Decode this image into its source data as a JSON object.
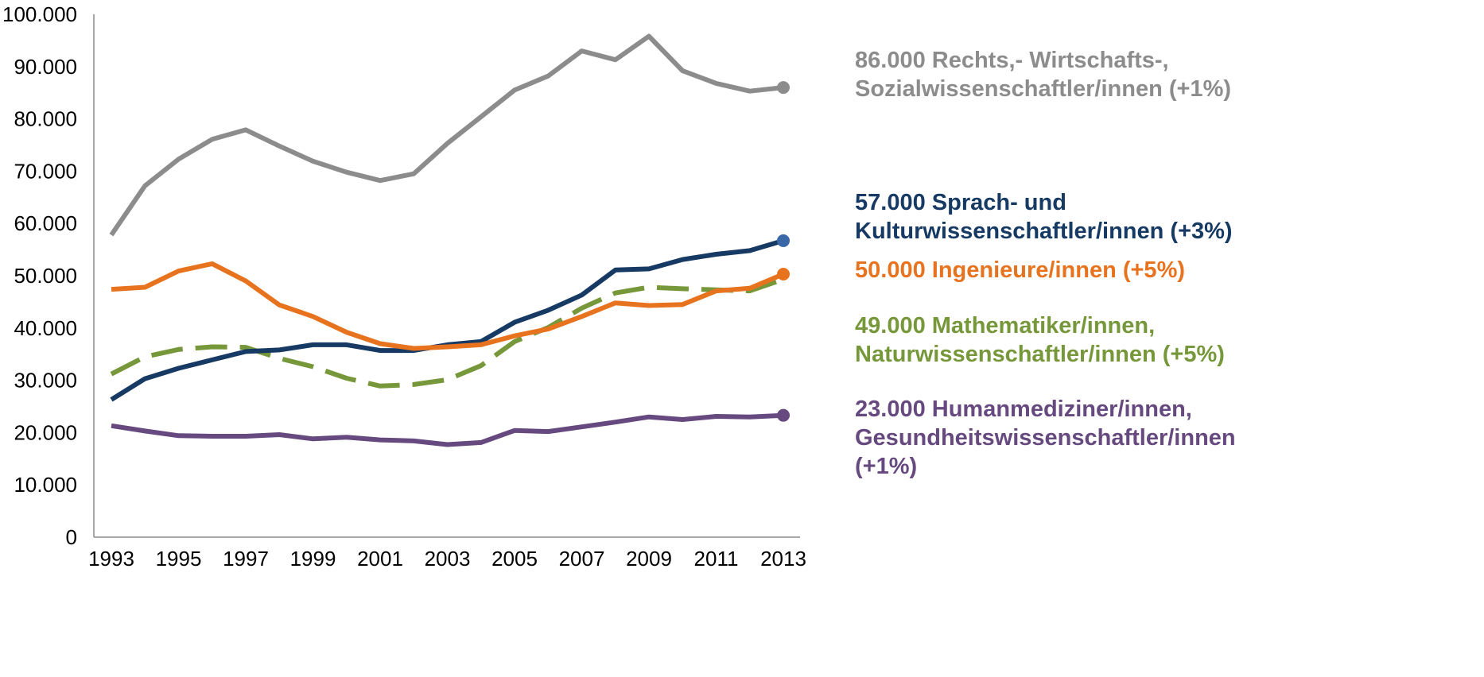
{
  "chart_data": {
    "type": "line",
    "x": [
      1993,
      1994,
      1995,
      1996,
      1997,
      1998,
      1999,
      2000,
      2001,
      2002,
      2003,
      2004,
      2005,
      2006,
      2007,
      2008,
      2009,
      2010,
      2011,
      2012,
      2013
    ],
    "xticks": [
      "1993",
      "1995",
      "1997",
      "1999",
      "2001",
      "2003",
      "2005",
      "2007",
      "2009",
      "2011",
      "2013"
    ],
    "yticks": [
      "0",
      "10.000",
      "20.000",
      "30.000",
      "40.000",
      "50.000",
      "60.000",
      "70.000",
      "80.000",
      "90.000",
      "100.000"
    ],
    "ylim": [
      0,
      100000
    ],
    "grid": false,
    "legend_placement": "right",
    "series": [
      {
        "key": "rechts",
        "label": "86.000 Rechts,- Wirtschafts-,\nSozialwissenschaftler/innen (+1%)",
        "color": "#8c8c8c",
        "marker_color": "#8c8c8c",
        "dashed": false,
        "values": [
          57800,
          67200,
          72300,
          76100,
          77900,
          74800,
          71900,
          69800,
          68200,
          69500,
          75300,
          80400,
          85500,
          88200,
          93000,
          91300,
          95800,
          89200,
          86800,
          85300,
          86000
        ]
      },
      {
        "key": "sprach",
        "label": "57.000 Sprach- und\nKulturwissenschaftler/innen (+3%)",
        "color": "#163a63",
        "marker_color": "#3a67a8",
        "dashed": false,
        "values": [
          26300,
          30300,
          32300,
          33900,
          35500,
          35800,
          36800,
          36800,
          35700,
          35700,
          36800,
          37400,
          41100,
          43400,
          46300,
          51100,
          51300,
          53100,
          54100,
          54800,
          56700
        ]
      },
      {
        "key": "ingenieure",
        "label": "50.000 Ingenieure/innen (+5%)",
        "color": "#e8731f",
        "marker_color": "#e8731f",
        "dashed": false,
        "values": [
          47400,
          47800,
          50900,
          52300,
          49000,
          44400,
          42200,
          39200,
          37000,
          36100,
          36400,
          36800,
          38500,
          39800,
          42200,
          44800,
          44300,
          44500,
          47100,
          47600,
          50300
        ]
      },
      {
        "key": "mathe",
        "label": "49.000 Mathematiker/innen,\nNaturwissenschaftler/innen (+5%)",
        "color": "#76973a",
        "marker_color": "#76973a",
        "dashed": true,
        "values": [
          31200,
          34500,
          35900,
          36400,
          36300,
          34200,
          32600,
          30400,
          28900,
          29200,
          30100,
          32800,
          37400,
          40100,
          43800,
          46700,
          47800,
          47500,
          47300,
          47100,
          49300
        ]
      },
      {
        "key": "human",
        "label": "23.000 Humanmediziner/innen,\nGesundheitswissenschaftler/innen\n(+1%)",
        "color": "#66497f",
        "marker_color": "#66497f",
        "dashed": false,
        "values": [
          21300,
          20300,
          19400,
          19300,
          19300,
          19600,
          18800,
          19100,
          18600,
          18400,
          17700,
          18100,
          20400,
          20200,
          21100,
          22000,
          23000,
          22500,
          23100,
          23000,
          23300
        ]
      }
    ]
  }
}
